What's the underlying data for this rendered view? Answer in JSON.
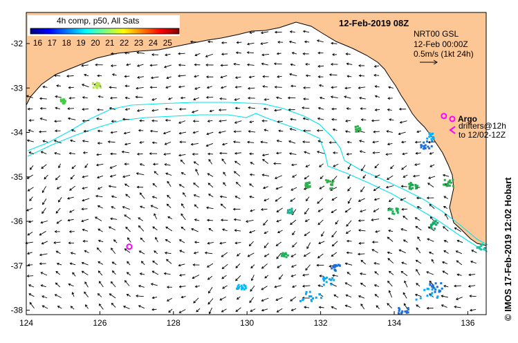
{
  "header": {
    "composite_label": "4h comp, p50, All Sats",
    "datetime": "12-Feb-2019 08Z"
  },
  "colorbar": {
    "ticks": [
      "16",
      "17",
      "18",
      "19",
      "20",
      "21",
      "22",
      "23",
      "24",
      "25"
    ],
    "min": 15.5,
    "max": 25.8,
    "colors": [
      "#00007f",
      "#0000ff",
      "#007fff",
      "#00ffff",
      "#7fff7f",
      "#ffff00",
      "#ff7f00",
      "#ff0000",
      "#7f0000"
    ]
  },
  "current_info": {
    "source": "NRT00 GSL",
    "time": "12-Feb 00:00Z",
    "scale": "0.5m/s (1kt 24h)"
  },
  "legend": {
    "argo_label": "Argo",
    "drifter_label_1": "drifters@12h",
    "drifter_label_2": "to 12/02-12Z"
  },
  "credit": "© IMOS 17-Feb-2019 12:02 Hobart",
  "axes": {
    "x_ticks": [
      "124",
      "126",
      "128",
      "130",
      "132",
      "134",
      "136"
    ],
    "y_ticks": [
      "-32",
      "-33",
      "-34",
      "-35",
      "-36",
      "-37",
      "-38"
    ],
    "lon_range": [
      124,
      136.5
    ],
    "lat_range": [
      -31.3,
      -38.1
    ]
  },
  "colors": {
    "land": "#fcc794",
    "contour": "#00e5ee",
    "argo": "#ff00ff",
    "arrow": "#000000"
  },
  "argo_floats": [
    {
      "lon": 126.8,
      "lat": -36.57
    },
    {
      "lon": 135.35,
      "lat": -33.63
    }
  ]
}
